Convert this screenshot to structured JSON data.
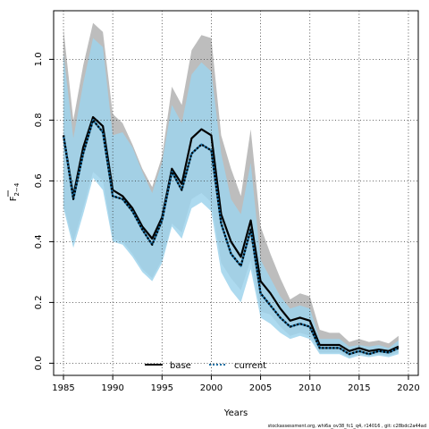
{
  "chart_data": {
    "type": "area",
    "xlabel": "Years",
    "ylabel_main": "F",
    "ylabel_sub": "2−4",
    "xlim": [
      1984,
      2021
    ],
    "ylim": [
      -0.04,
      1.16
    ],
    "xticks": [
      1985,
      1990,
      1995,
      2000,
      2005,
      2010,
      2015,
      2020
    ],
    "yticks": [
      0.0,
      0.2,
      0.4,
      0.6,
      0.8,
      1.0
    ],
    "ytick_labels": [
      "0.0",
      "0.2",
      "0.4",
      "0.6",
      "0.8",
      "1.0"
    ],
    "grid": true,
    "legend_position": "bottom",
    "years": [
      1985,
      1986,
      1987,
      1988,
      1989,
      1990,
      1991,
      1992,
      1993,
      1994,
      1995,
      1996,
      1997,
      1998,
      1999,
      2000,
      2001,
      2002,
      2003,
      2004,
      2005,
      2006,
      2007,
      2008,
      2009,
      2010,
      2011,
      2012,
      2013,
      2014,
      2015,
      2016,
      2017,
      2018,
      2019
    ],
    "series": [
      {
        "name": "base",
        "color": "#000000",
        "band_color": "#bdbdbd",
        "values": [
          0.75,
          0.55,
          0.71,
          0.81,
          0.78,
          0.57,
          0.55,
          0.51,
          0.45,
          0.41,
          0.48,
          0.64,
          0.59,
          0.74,
          0.77,
          0.75,
          0.49,
          0.4,
          0.35,
          0.47,
          0.27,
          0.23,
          0.18,
          0.14,
          0.15,
          0.14,
          0.06,
          0.06,
          0.06,
          0.04,
          0.05,
          0.04,
          0.045,
          0.04,
          0.055
        ],
        "lower": [
          0.52,
          0.4,
          0.51,
          0.63,
          0.6,
          0.41,
          0.4,
          0.36,
          0.31,
          0.28,
          0.34,
          0.46,
          0.43,
          0.54,
          0.56,
          0.53,
          0.33,
          0.28,
          0.24,
          0.34,
          0.17,
          0.16,
          0.12,
          0.09,
          0.1,
          0.09,
          0.035,
          0.035,
          0.035,
          0.02,
          0.03,
          0.025,
          0.03,
          0.025,
          0.035
        ],
        "upper": [
          1.1,
          0.8,
          0.98,
          1.12,
          1.09,
          0.82,
          0.79,
          0.72,
          0.64,
          0.58,
          0.68,
          0.91,
          0.85,
          1.03,
          1.08,
          1.07,
          0.75,
          0.64,
          0.55,
          0.77,
          0.45,
          0.36,
          0.28,
          0.21,
          0.23,
          0.22,
          0.11,
          0.1,
          0.1,
          0.07,
          0.08,
          0.07,
          0.075,
          0.065,
          0.09
        ]
      },
      {
        "name": "current",
        "color": "#1a6fa3",
        "band_color": "#9fd4ec",
        "values": [
          0.75,
          0.54,
          0.69,
          0.8,
          0.76,
          0.55,
          0.54,
          0.5,
          0.44,
          0.39,
          0.47,
          0.63,
          0.57,
          0.69,
          0.72,
          0.7,
          0.46,
          0.36,
          0.32,
          0.44,
          0.23,
          0.19,
          0.15,
          0.12,
          0.13,
          0.12,
          0.05,
          0.05,
          0.05,
          0.03,
          0.04,
          0.03,
          0.04,
          0.035,
          0.05
        ],
        "lower": [
          0.51,
          0.38,
          0.49,
          0.61,
          0.57,
          0.4,
          0.39,
          0.35,
          0.3,
          0.27,
          0.33,
          0.45,
          0.41,
          0.51,
          0.53,
          0.5,
          0.3,
          0.24,
          0.2,
          0.31,
          0.15,
          0.13,
          0.1,
          0.08,
          0.09,
          0.08,
          0.03,
          0.03,
          0.03,
          0.015,
          0.025,
          0.02,
          0.025,
          0.02,
          0.03
        ],
        "upper": [
          1.02,
          0.74,
          0.92,
          1.07,
          1.04,
          0.75,
          0.76,
          0.71,
          0.63,
          0.56,
          0.66,
          0.85,
          0.79,
          0.95,
          0.99,
          0.96,
          0.69,
          0.54,
          0.49,
          0.66,
          0.34,
          0.28,
          0.22,
          0.18,
          0.19,
          0.18,
          0.08,
          0.08,
          0.08,
          0.055,
          0.06,
          0.055,
          0.06,
          0.05,
          0.075
        ]
      }
    ]
  },
  "footer": "stockassessment.org, whi6a_ov38_fc1_q4, r14016 , git: c28bdc2a44ad"
}
